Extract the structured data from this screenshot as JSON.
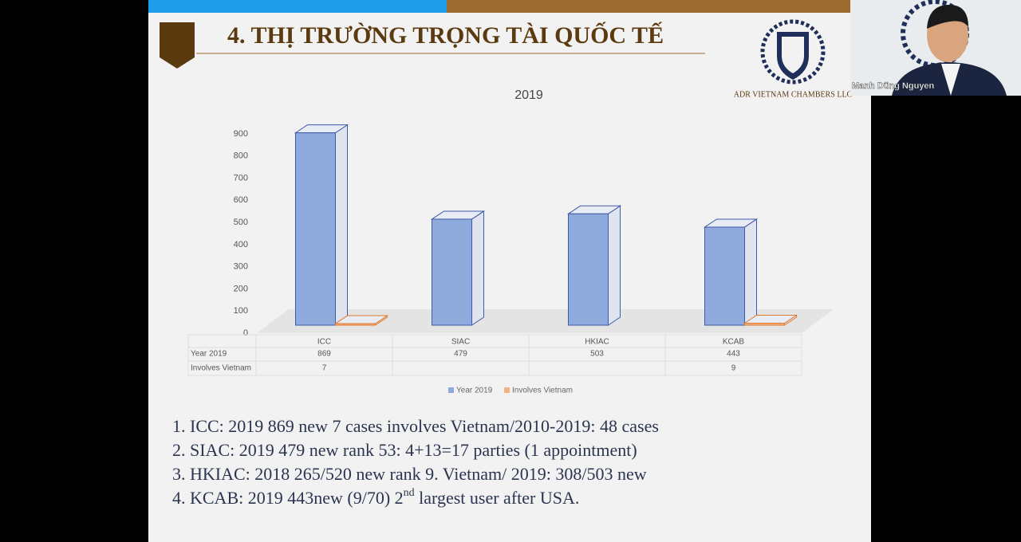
{
  "slide": {
    "title": "4. THỊ TRƯỜNG TRỌNG TÀI QUỐC TẾ",
    "logo_text": "ADR VIETNAM CHAMBERS LLC",
    "bullets": [
      "1. ICC: 2019 869 new 7 cases involves Vietnam/2010-2019: 48 cases",
      "2. SIAC: 2019 479 new rank 53: 4+13=17 parties (1 appointment)",
      "3. HKIAC: 2018 265/520 new rank 9. Vietnam/ 2019: 308/503 new"
    ],
    "last_bullet": {
      "text": "4. KCAB: 2019 443new (9/70) 2",
      "sup": "nd",
      "tail": " largest user after USA."
    }
  },
  "participant": {
    "name": "Manh Dũng Nguyen"
  },
  "chart_data": {
    "type": "bar",
    "title": "2019",
    "categories": [
      "ICC",
      "SIAC",
      "HKIAC",
      "KCAB"
    ],
    "series": [
      {
        "name": "Year 2019",
        "color": "#8faadc",
        "values": [
          869,
          479,
          503,
          443
        ]
      },
      {
        "name": "Involves Vietnam",
        "color": "#f4b183",
        "values": [
          7,
          null,
          null,
          9
        ]
      }
    ],
    "ylim": [
      0,
      900
    ],
    "yticks": [
      0,
      100,
      200,
      300,
      400,
      500,
      600,
      700,
      800,
      900
    ],
    "grid": false
  }
}
